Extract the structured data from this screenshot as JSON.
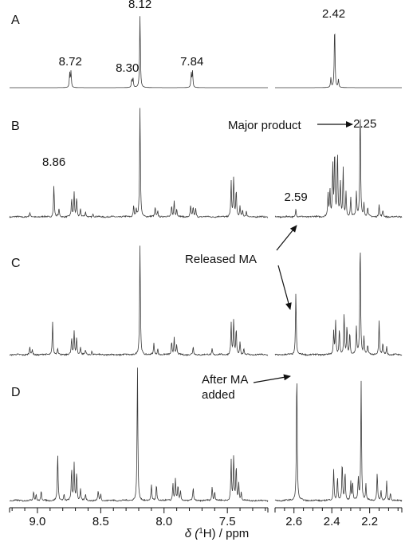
{
  "chart_data": {
    "type": "line",
    "title": "",
    "xlabel_prefix": "δ (",
    "xlabel_sup": "1",
    "xlabel_suffix": "H) / ppm",
    "x_reversed": true,
    "grid": false,
    "axes": [
      {
        "xlim": [
          9.22,
          7.18
        ],
        "ticks": [
          9.0,
          8.5,
          8.0,
          7.5
        ],
        "tick_labels": [
          "9.0",
          "8.5",
          "8.0",
          "7.5"
        ]
      },
      {
        "xlim": [
          2.7,
          2.03
        ],
        "ticks": [
          2.6,
          2.4,
          2.2
        ],
        "tick_labels": [
          "2.6",
          "2.4",
          "2.2"
        ]
      }
    ],
    "panels": [
      {
        "label": "A",
        "baseline_y": 110,
        "noise": 0.0,
        "left_peaks": [
          [
            8.745,
            18
          ],
          [
            8.735,
            20
          ],
          [
            8.255,
            10
          ],
          [
            8.245,
            12
          ],
          [
            8.19,
            92
          ],
          [
            7.785,
            18
          ],
          [
            7.775,
            20
          ]
        ],
        "right_peaks": [
          [
            2.405,
            12
          ],
          [
            2.385,
            80
          ],
          [
            2.365,
            10
          ]
        ],
        "peak_labels": [
          {
            "text": "8.72",
            "x": 8.74,
            "side": "left"
          },
          {
            "text": "8.30",
            "x": 8.29,
            "side": "left"
          },
          {
            "text": "8.12",
            "x": 8.19,
            "side": "left"
          },
          {
            "text": "7.84",
            "x": 7.78,
            "side": "left"
          },
          {
            "text": "2.42",
            "x": 2.39,
            "side": "right"
          }
        ]
      },
      {
        "label": "B",
        "baseline_y": 272,
        "noise": 1.0,
        "left_peaks": [
          [
            9.06,
            5
          ],
          [
            8.87,
            40
          ],
          [
            8.83,
            10
          ],
          [
            8.73,
            22
          ],
          [
            8.71,
            30
          ],
          [
            8.69,
            24
          ],
          [
            8.66,
            10
          ],
          [
            8.62,
            6
          ],
          [
            8.56,
            4
          ],
          [
            8.24,
            14
          ],
          [
            8.22,
            10
          ],
          [
            8.19,
            140
          ],
          [
            8.07,
            12
          ],
          [
            8.05,
            8
          ],
          [
            7.94,
            14
          ],
          [
            7.92,
            20
          ],
          [
            7.9,
            10
          ],
          [
            7.79,
            14
          ],
          [
            7.77,
            12
          ],
          [
            7.75,
            10
          ],
          [
            7.47,
            44
          ],
          [
            7.45,
            50
          ],
          [
            7.43,
            34
          ],
          [
            7.4,
            14
          ],
          [
            7.38,
            8
          ],
          [
            7.35,
            6
          ]
        ],
        "right_peaks": [
          [
            2.59,
            10
          ],
          [
            2.42,
            28
          ],
          [
            2.41,
            34
          ],
          [
            2.395,
            66
          ],
          [
            2.385,
            84
          ],
          [
            2.37,
            82
          ],
          [
            2.355,
            44
          ],
          [
            2.34,
            60
          ],
          [
            2.325,
            30
          ],
          [
            2.3,
            24
          ],
          [
            2.27,
            30
          ],
          [
            2.25,
            140
          ],
          [
            2.23,
            16
          ],
          [
            2.21,
            12
          ],
          [
            2.15,
            16
          ],
          [
            2.13,
            8
          ]
        ],
        "peak_labels": [
          {
            "text": "8.86",
            "x": 8.87,
            "side": "left"
          },
          {
            "text": "2.59",
            "x": 2.59,
            "side": "right"
          },
          {
            "text": "2.25",
            "x": 2.225,
            "side": "right"
          }
        ]
      },
      {
        "label": "C",
        "baseline_y": 445,
        "noise": 1.0,
        "left_peaks": [
          [
            9.06,
            10
          ],
          [
            9.04,
            6
          ],
          [
            8.88,
            42
          ],
          [
            8.84,
            8
          ],
          [
            8.73,
            20
          ],
          [
            8.71,
            30
          ],
          [
            8.69,
            22
          ],
          [
            8.66,
            10
          ],
          [
            8.62,
            6
          ],
          [
            8.57,
            5
          ],
          [
            8.19,
            140
          ],
          [
            8.08,
            14
          ],
          [
            8.05,
            8
          ],
          [
            7.94,
            16
          ],
          [
            7.92,
            22
          ],
          [
            7.9,
            12
          ],
          [
            7.77,
            10
          ],
          [
            7.62,
            8
          ],
          [
            7.47,
            40
          ],
          [
            7.45,
            44
          ],
          [
            7.43,
            32
          ],
          [
            7.4,
            16
          ],
          [
            7.37,
            8
          ]
        ],
        "right_peaks": [
          [
            2.59,
            80
          ],
          [
            2.39,
            30
          ],
          [
            2.38,
            42
          ],
          [
            2.36,
            32
          ],
          [
            2.335,
            52
          ],
          [
            2.32,
            36
          ],
          [
            2.305,
            28
          ],
          [
            2.27,
            34
          ],
          [
            2.25,
            146
          ],
          [
            2.23,
            22
          ],
          [
            2.21,
            12
          ],
          [
            2.15,
            42
          ],
          [
            2.13,
            14
          ],
          [
            2.11,
            10
          ]
        ],
        "peak_labels": []
      },
      {
        "label": "D",
        "baseline_y": 628,
        "noise": 1.0,
        "left_peaks": [
          [
            9.03,
            12
          ],
          [
            9.01,
            8
          ],
          [
            8.97,
            12
          ],
          [
            8.84,
            60
          ],
          [
            8.79,
            8
          ],
          [
            8.73,
            40
          ],
          [
            8.71,
            46
          ],
          [
            8.69,
            36
          ],
          [
            8.66,
            14
          ],
          [
            8.62,
            8
          ],
          [
            8.52,
            12
          ],
          [
            8.5,
            8
          ],
          [
            8.21,
            170
          ],
          [
            8.1,
            20
          ],
          [
            8.06,
            20
          ],
          [
            7.93,
            22
          ],
          [
            7.91,
            28
          ],
          [
            7.89,
            18
          ],
          [
            7.87,
            12
          ],
          [
            7.77,
            16
          ],
          [
            7.62,
            18
          ],
          [
            7.6,
            12
          ],
          [
            7.47,
            50
          ],
          [
            7.45,
            56
          ],
          [
            7.43,
            44
          ],
          [
            7.41,
            22
          ],
          [
            7.39,
            10
          ]
        ],
        "right_peaks": [
          [
            2.585,
            168
          ],
          [
            2.39,
            40
          ],
          [
            2.37,
            30
          ],
          [
            2.345,
            48
          ],
          [
            2.33,
            36
          ],
          [
            2.3,
            24
          ],
          [
            2.29,
            22
          ],
          [
            2.26,
            28
          ],
          [
            2.245,
            150
          ],
          [
            2.22,
            20
          ],
          [
            2.16,
            36
          ],
          [
            2.14,
            12
          ],
          [
            2.11,
            24
          ],
          [
            2.09,
            10
          ]
        ],
        "peak_labels": []
      }
    ],
    "annotations": [
      {
        "text": "Major product"
      },
      {
        "text": "Released MA"
      },
      {
        "text": "After MA"
      },
      {
        "text": "added"
      }
    ]
  }
}
